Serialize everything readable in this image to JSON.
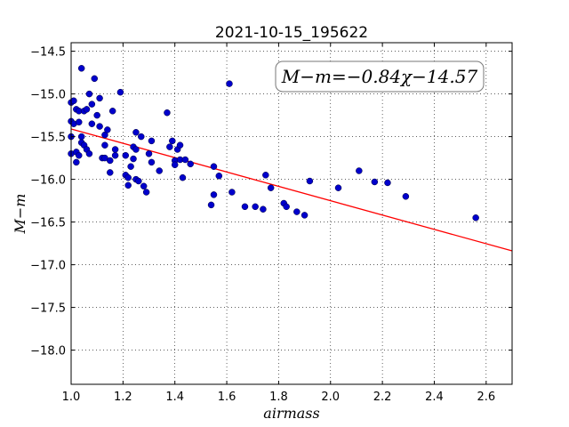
{
  "chart_data": {
    "type": "scatter",
    "title": "2021-10-15_195622",
    "xlabel": "airmass",
    "ylabel": "M−m",
    "xlim": [
      1.0,
      2.7
    ],
    "ylim": [
      -18.4,
      -14.4
    ],
    "y_inverted": true,
    "grid": true,
    "x_ticks": [
      "1.0",
      "1.2",
      "1.4",
      "1.6",
      "1.8",
      "2.0",
      "2.2",
      "2.4",
      "2.6"
    ],
    "y_ticks": [
      "−14.5",
      "−15.0",
      "−15.5",
      "−16.0",
      "−16.5",
      "−17.0",
      "−17.5",
      "−18.0"
    ],
    "annotation": "M−m=−0.84χ−14.57",
    "fit_line": {
      "slope": -0.84,
      "intercept": -14.57
    },
    "colors": {
      "points": "#0000cc",
      "fit": "#ff0000"
    },
    "points": [
      [
        1.0,
        -15.1
      ],
      [
        1.0,
        -15.32
      ],
      [
        1.0,
        -15.5
      ],
      [
        1.0,
        -15.7
      ],
      [
        1.01,
        -15.08
      ],
      [
        1.01,
        -15.35
      ],
      [
        1.02,
        -15.18
      ],
      [
        1.02,
        -15.68
      ],
      [
        1.02,
        -15.8
      ],
      [
        1.03,
        -15.2
      ],
      [
        1.03,
        -15.33
      ],
      [
        1.03,
        -15.72
      ],
      [
        1.04,
        -14.7
      ],
      [
        1.04,
        -15.5
      ],
      [
        1.04,
        -15.57
      ],
      [
        1.05,
        -15.2
      ],
      [
        1.05,
        -15.6
      ],
      [
        1.06,
        -15.18
      ],
      [
        1.06,
        -15.65
      ],
      [
        1.07,
        -15.0
      ],
      [
        1.07,
        -15.7
      ],
      [
        1.08,
        -15.12
      ],
      [
        1.08,
        -15.35
      ],
      [
        1.09,
        -14.82
      ],
      [
        1.1,
        -15.25
      ],
      [
        1.11,
        -15.05
      ],
      [
        1.11,
        -15.38
      ],
      [
        1.12,
        -15.75
      ],
      [
        1.13,
        -15.48
      ],
      [
        1.13,
        -15.6
      ],
      [
        1.13,
        -15.75
      ],
      [
        1.14,
        -15.42
      ],
      [
        1.15,
        -15.78
      ],
      [
        1.15,
        -15.92
      ],
      [
        1.16,
        -15.2
      ],
      [
        1.17,
        -15.65
      ],
      [
        1.17,
        -15.72
      ],
      [
        1.19,
        -14.98
      ],
      [
        1.21,
        -15.72
      ],
      [
        1.21,
        -15.95
      ],
      [
        1.22,
        -15.98
      ],
      [
        1.22,
        -16.07
      ],
      [
        1.23,
        -15.85
      ],
      [
        1.24,
        -15.62
      ],
      [
        1.24,
        -15.76
      ],
      [
        1.25,
        -15.45
      ],
      [
        1.25,
        -15.65
      ],
      [
        1.25,
        -16.0
      ],
      [
        1.26,
        -16.02
      ],
      [
        1.27,
        -15.5
      ],
      [
        1.28,
        -16.08
      ],
      [
        1.29,
        -16.15
      ],
      [
        1.3,
        -15.7
      ],
      [
        1.31,
        -15.55
      ],
      [
        1.31,
        -15.8
      ],
      [
        1.34,
        -15.9
      ],
      [
        1.37,
        -15.22
      ],
      [
        1.38,
        -15.62
      ],
      [
        1.39,
        -15.55
      ],
      [
        1.4,
        -15.78
      ],
      [
        1.4,
        -15.83
      ],
      [
        1.41,
        -15.65
      ],
      [
        1.42,
        -15.6
      ],
      [
        1.42,
        -15.77
      ],
      [
        1.43,
        -15.98
      ],
      [
        1.44,
        -15.77
      ],
      [
        1.46,
        -15.82
      ],
      [
        1.54,
        -16.3
      ],
      [
        1.55,
        -16.18
      ],
      [
        1.55,
        -15.85
      ],
      [
        1.57,
        -15.96
      ],
      [
        1.61,
        -14.88
      ],
      [
        1.62,
        -16.15
      ],
      [
        1.67,
        -16.32
      ],
      [
        1.71,
        -16.32
      ],
      [
        1.74,
        -16.35
      ],
      [
        1.75,
        -15.95
      ],
      [
        1.77,
        -16.1
      ],
      [
        1.82,
        -16.28
      ],
      [
        1.83,
        -16.32
      ],
      [
        1.87,
        -16.38
      ],
      [
        1.9,
        -16.42
      ],
      [
        1.92,
        -16.02
      ],
      [
        2.03,
        -16.1
      ],
      [
        2.11,
        -15.9
      ],
      [
        2.17,
        -16.03
      ],
      [
        2.22,
        -16.04
      ],
      [
        2.29,
        -16.2
      ],
      [
        2.56,
        -16.45
      ]
    ]
  }
}
